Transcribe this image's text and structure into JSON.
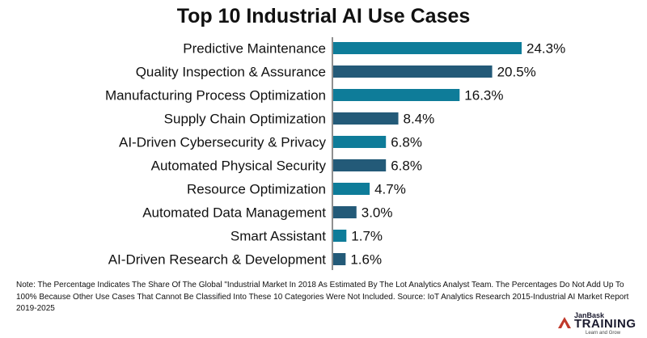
{
  "chart_data": {
    "type": "bar",
    "orientation": "horizontal",
    "title": "Top 10 Industrial AI Use Cases",
    "categories": [
      "Predictive Maintenance",
      "Quality Inspection & Assurance",
      "Manufacturing Process Optimization",
      "Supply Chain Optimization",
      "AI-Driven Cybersecurity & Privacy",
      "Automated Physical Security",
      "Resource Optimization",
      "Automated Data Management",
      "Smart Assistant",
      "AI-Driven Research & Development"
    ],
    "values": [
      24.3,
      20.5,
      16.3,
      8.4,
      6.8,
      6.8,
      4.7,
      3.0,
      1.7,
      1.6
    ],
    "value_labels": [
      "24.3%",
      "20.5%",
      "16.3%",
      "8.4%",
      "6.8%",
      "6.8%",
      "4.7%",
      "3.0%",
      "1.7%",
      "1.6%"
    ],
    "xlim": [
      0,
      24.3
    ],
    "grid": false,
    "colors": [
      "#0e7c99",
      "#235a78"
    ]
  },
  "note": "Note: The Percentage Indicates The Share Of The Global \"Industrial Market In 2018 As Estimated By The Lot Analytics Analyst Team. The Percentages Do Not Add Up To 100% Because Other Use Cases That Cannot Be Classified Into These 10 Categories Were Not Included. Source: IoT Analytics Research 2015-Industrial AI Market Report 2019-2025",
  "logo": {
    "brand": "JanBask",
    "name": "TRAINING",
    "tagline": "Learn and Grow"
  }
}
